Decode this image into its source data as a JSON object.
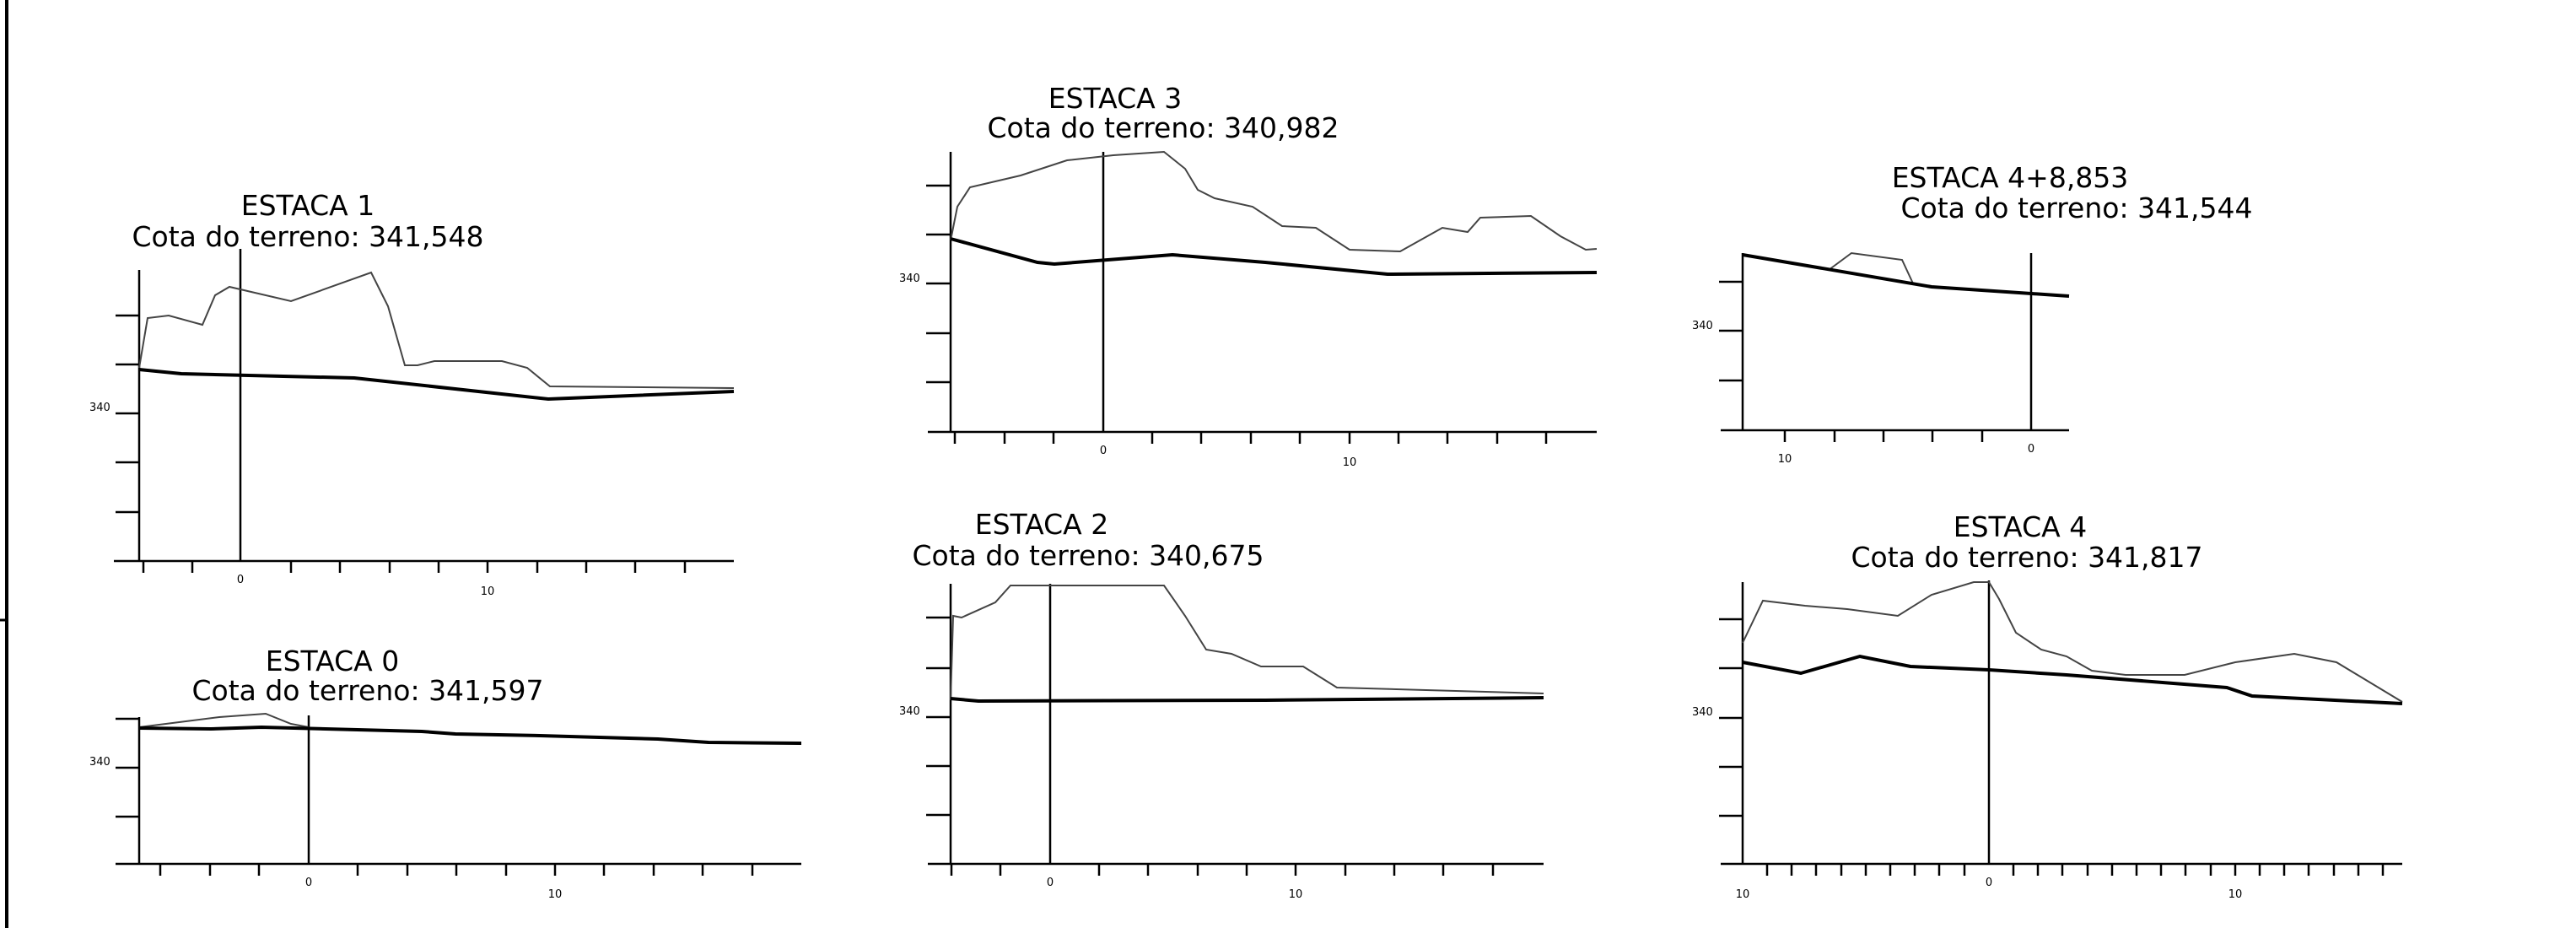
{
  "sections": [
    {
      "id": "estaca-1",
      "title": "ESTACA 1",
      "subtitle": "Cota do terreno: 341,548",
      "elevation_label": "340",
      "x_tick_labels": [
        "0",
        "10"
      ]
    },
    {
      "id": "estaca-0",
      "title": "ESTACA 0",
      "subtitle": "Cota do terreno: 341,597",
      "elevation_label": "340",
      "x_tick_labels": [
        "0",
        "10"
      ]
    },
    {
      "id": "estaca-3",
      "title": "ESTACA 3",
      "subtitle": "Cota do terreno: 340,982",
      "elevation_label": "340",
      "x_tick_labels": [
        "0",
        "10"
      ]
    },
    {
      "id": "estaca-2",
      "title": "ESTACA 2",
      "subtitle": "Cota do terreno: 340,675",
      "elevation_label": "340",
      "x_tick_labels": [
        "0",
        "10"
      ]
    },
    {
      "id": "estaca-4-8-853",
      "title": "ESTACA 4+8,853",
      "subtitle": "Cota do terreno: 341,544",
      "elevation_label": "340",
      "x_tick_labels": [
        "10",
        "0"
      ]
    },
    {
      "id": "estaca-4",
      "title": "ESTACA 4",
      "subtitle": "Cota do terreno: 341,817",
      "elevation_label": "340",
      "x_tick_labels": [
        "10",
        "0",
        "10"
      ]
    }
  ],
  "colors": {
    "line": "#000000",
    "terrain": "#444444"
  }
}
